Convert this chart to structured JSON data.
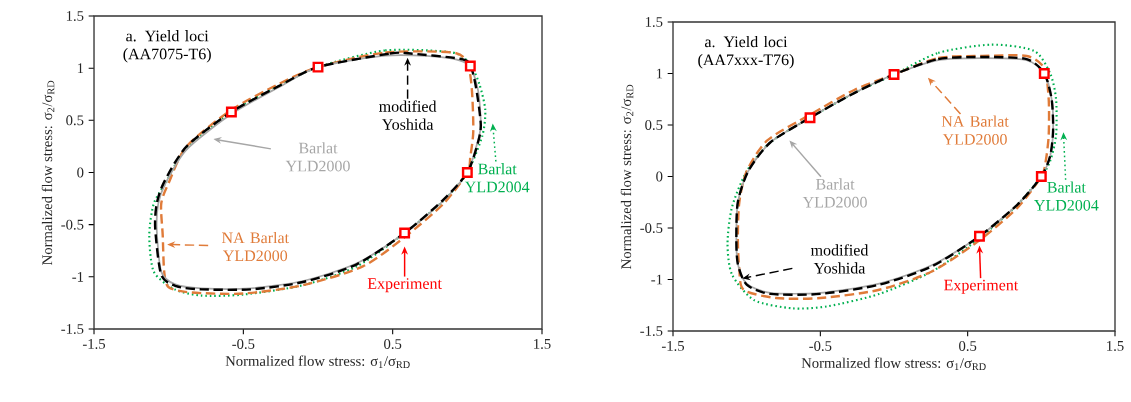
{
  "chart_data": [
    {
      "type": "scatter",
      "title": "a. Yield loci (AA7075-T6)",
      "xlabel": "Normalized flow stress: σ$_{1}$/σ$_{RD}$",
      "ylabel": "Normalized flow stress: σ$_{2}$/σ$_{RD}$",
      "xlim": [
        -1.5,
        1.5
      ],
      "ylim": [
        -1.5,
        1.5
      ],
      "xticks": [
        -1.5,
        -0.5,
        0.5,
        1.5
      ],
      "yticks": [
        -1.5,
        -1,
        -0.5,
        0,
        0.5,
        1,
        1.5
      ],
      "grid": false,
      "series": [
        {
          "color": "#ff0000",
          "marker": "square",
          "x": [
            -0.58,
            0,
            1.02,
            1.0,
            0.58
          ],
          "values": [
            0.58,
            1.01,
            1.02,
            0,
            -0.58
          ]
        }
      ],
      "annotations": [
        "modified Yoshida",
        "Barlat YLD2000",
        "Barlat YLD2004",
        "NA Barlat YLD2000",
        "Experiment"
      ]
    },
    {
      "type": "scatter",
      "title": "a. Yield loci (AA7xxx-T76)",
      "xlabel": "Normalized flow stress: σ$_{1}$/σ$_{RD}$",
      "ylabel": "Normalized flow stress: σ$_{2}$/σ$_{RD}$",
      "xlim": [
        -1.5,
        1.5
      ],
      "ylim": [
        -1.5,
        1.5
      ],
      "xticks": [
        -1.5,
        -0.5,
        0.5,
        1.5
      ],
      "yticks": [
        -1.5,
        -1,
        -0.5,
        0,
        0.5,
        1,
        1.5
      ],
      "grid": false,
      "series": [
        {
          "color": "#ff0000",
          "marker": "square",
          "x": [
            -0.57,
            0,
            1.02,
            1.0,
            0.58
          ],
          "values": [
            0.57,
            0.99,
            1.0,
            0,
            -0.58
          ]
        }
      ],
      "annotations": [
        "NA Barlat YLD2000",
        "Barlat YLD2000",
        "Barlat YLD2004",
        "modified Yoshida",
        "Experiment"
      ]
    }
  ]
}
